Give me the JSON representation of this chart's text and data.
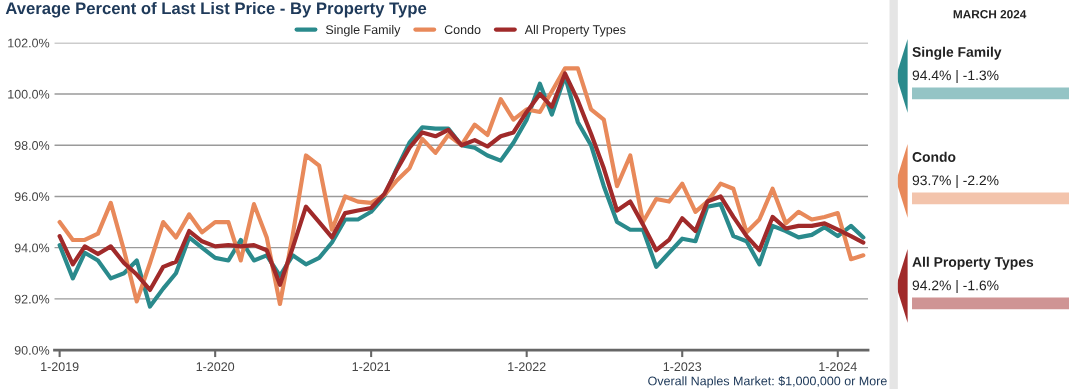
{
  "chart_data": [
    {
      "type": "line",
      "title": "Average Percent of Last List Price - By Property Type",
      "x": [
        "2019-01",
        "2019-02",
        "2019-03",
        "2019-04",
        "2019-05",
        "2019-06",
        "2019-07",
        "2019-08",
        "2019-09",
        "2019-10",
        "2019-11",
        "2019-12",
        "2020-01",
        "2020-02",
        "2020-03",
        "2020-04",
        "2020-05",
        "2020-06",
        "2020-07",
        "2020-08",
        "2020-09",
        "2020-10",
        "2020-11",
        "2020-12",
        "2021-01",
        "2021-02",
        "2021-03",
        "2021-04",
        "2021-05",
        "2021-06",
        "2021-07",
        "2021-08",
        "2021-09",
        "2021-10",
        "2021-11",
        "2021-12",
        "2022-01",
        "2022-02",
        "2022-03",
        "2022-04",
        "2022-05",
        "2022-06",
        "2022-07",
        "2022-08",
        "2022-09",
        "2022-10",
        "2022-11",
        "2022-12",
        "2023-01",
        "2023-02",
        "2023-03",
        "2023-04",
        "2023-05",
        "2023-06",
        "2023-07",
        "2023-08",
        "2023-09",
        "2023-10",
        "2023-11",
        "2023-12",
        "2024-01",
        "2024-02",
        "2024-03"
      ],
      "series": [
        {
          "name": "Single Family",
          "color": "#2a8a8c",
          "values": [
            94.1,
            92.8,
            93.8,
            93.5,
            92.8,
            93.0,
            93.5,
            91.7,
            92.4,
            93.0,
            94.4,
            94.0,
            93.6,
            93.5,
            94.3,
            93.5,
            93.7,
            92.9,
            93.7,
            93.35,
            93.6,
            94.2,
            95.1,
            95.1,
            95.4,
            96.0,
            97.05,
            98.1,
            98.7,
            98.65,
            98.65,
            98.0,
            97.9,
            97.6,
            97.4,
            98.1,
            99.0,
            100.4,
            99.2,
            100.7,
            98.9,
            98.0,
            96.4,
            95.0,
            94.7,
            94.7,
            93.25,
            93.8,
            94.35,
            94.25,
            95.6,
            95.7,
            94.45,
            94.25,
            93.35,
            94.85,
            94.65,
            94.4,
            94.5,
            94.8,
            94.45,
            94.85,
            94.4
          ]
        },
        {
          "name": "Condo",
          "color": "#e8895a",
          "values": [
            95.0,
            94.3,
            94.3,
            94.55,
            95.75,
            93.9,
            91.9,
            93.4,
            95.0,
            94.4,
            95.3,
            94.6,
            95.0,
            95.0,
            93.5,
            95.7,
            94.4,
            91.8,
            94.5,
            97.6,
            97.2,
            94.7,
            96.0,
            95.8,
            95.75,
            96.05,
            96.6,
            97.1,
            98.25,
            97.7,
            98.4,
            98.0,
            98.8,
            98.4,
            99.8,
            99.0,
            99.4,
            99.3,
            100.1,
            101.0,
            101.0,
            99.4,
            99.0,
            96.4,
            97.6,
            95.0,
            95.9,
            95.8,
            96.5,
            95.4,
            95.8,
            96.5,
            96.3,
            94.6,
            95.1,
            96.3,
            94.95,
            95.4,
            95.1,
            95.2,
            95.35,
            93.55,
            93.7
          ]
        },
        {
          "name": "All Property Types",
          "color": "#a02a2a",
          "values": [
            94.45,
            93.35,
            94.05,
            93.75,
            94.05,
            93.4,
            92.95,
            92.35,
            93.25,
            93.45,
            94.65,
            94.25,
            94.05,
            94.1,
            94.05,
            94.1,
            93.9,
            92.55,
            94.0,
            95.6,
            95.0,
            94.4,
            95.35,
            95.45,
            95.55,
            96.1,
            97.0,
            97.9,
            98.5,
            98.35,
            98.6,
            98.0,
            98.2,
            97.95,
            98.35,
            98.5,
            99.3,
            100.0,
            99.5,
            100.8,
            99.75,
            98.45,
            97.1,
            95.45,
            95.8,
            94.9,
            93.9,
            94.3,
            95.15,
            94.65,
            95.8,
            96.0,
            95.2,
            94.45,
            93.9,
            95.2,
            94.75,
            94.85,
            94.85,
            94.95,
            94.7,
            94.45,
            94.2
          ]
        }
      ],
      "xlim": [
        "2018-12-20",
        "2024-03-12"
      ],
      "xticks": [
        {
          "value": "2019-01",
          "label": "1-2019"
        },
        {
          "value": "2020-01",
          "label": "1-2020"
        },
        {
          "value": "2021-01",
          "label": "1-2021"
        },
        {
          "value": "2022-01",
          "label": "1-2022"
        },
        {
          "value": "2023-01",
          "label": "1-2023"
        },
        {
          "value": "2024-01",
          "label": "1-2024"
        }
      ],
      "ylim": [
        90,
        102
      ],
      "yticks": [
        {
          "value": 90,
          "label": "90.0%"
        },
        {
          "value": 92,
          "label": "92.0%"
        },
        {
          "value": 94,
          "label": "94.0%"
        },
        {
          "value": 96,
          "label": "96.0%"
        },
        {
          "value": 98,
          "label": "98.0%"
        },
        {
          "value": 100,
          "label": "100.0%"
        },
        {
          "value": 102,
          "label": "102.0%"
        }
      ],
      "grid": "y",
      "legend": "top",
      "marker": "none",
      "line_style": "solid",
      "annotations": [
        "Overall Naples Market: $1,000,000 or More"
      ]
    },
    {
      "type": "other",
      "title": "MARCH 2024",
      "categories": [
        "Single Family",
        "Condo",
        "All Property Types"
      ],
      "annotations": [
        "94.4% | -1.3%",
        "93.7% | -2.2%",
        "94.2% | -1.6%"
      ],
      "colors": [
        "#2a8a8c",
        "#e8895a",
        "#a02a2a"
      ]
    }
  ]
}
